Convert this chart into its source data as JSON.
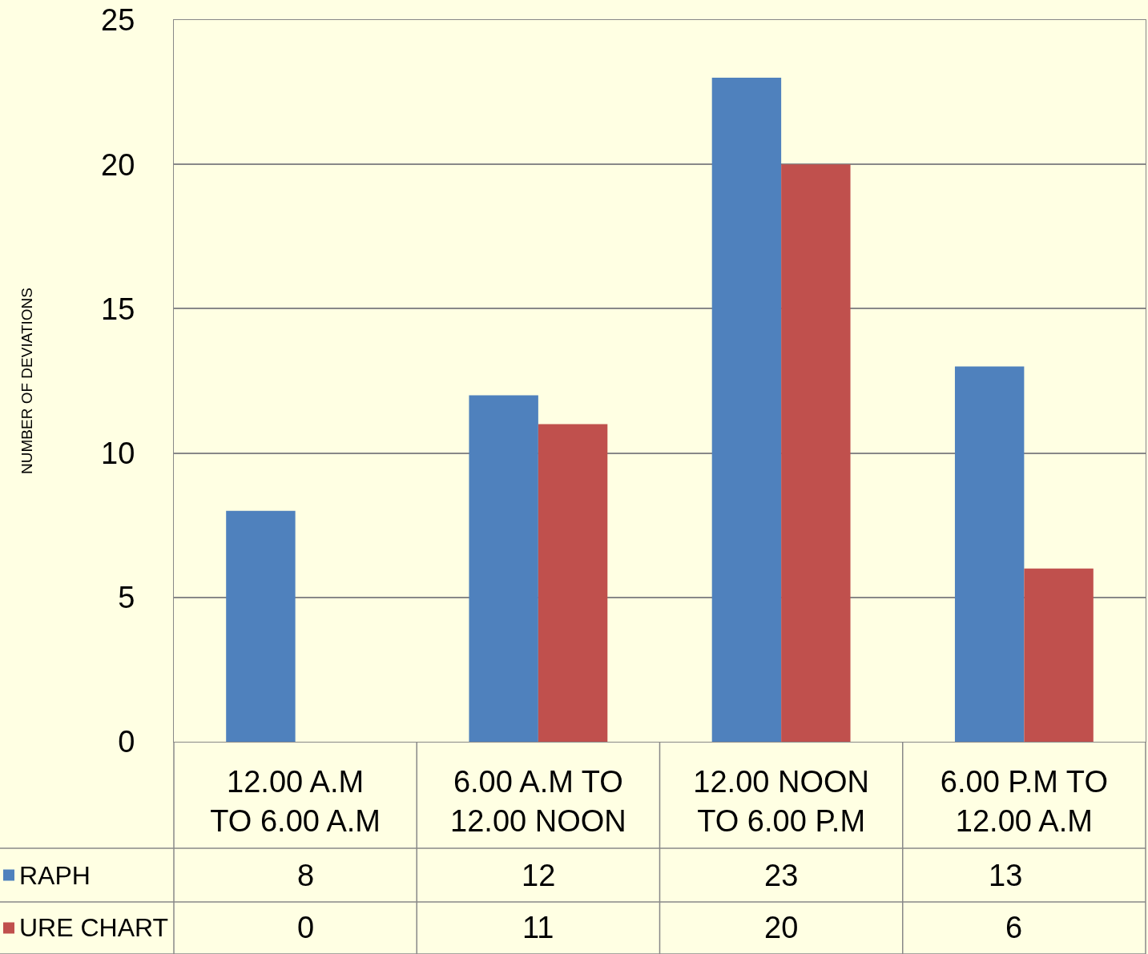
{
  "chart_data": {
    "type": "bar",
    "ylabel": "NUMBER OF DEVIATIONS",
    "categories": [
      "12.00 A.M TO 6.00 A.M",
      "6.00 A.M TO 12.00 NOON",
      "12.00 NOON TO 6.00 P.M",
      "6.00 P.M TO 12.00 A.M"
    ],
    "series": [
      {
        "name": "RAPH",
        "color": "#4f81bd",
        "values": [
          8,
          12,
          23,
          13
        ]
      },
      {
        "name": "URE CHART",
        "color": "#c0504d",
        "values": [
          0,
          11,
          20,
          6
        ]
      }
    ],
    "ylim": [
      0,
      25
    ],
    "yticks": [
      0,
      5,
      10,
      15,
      20,
      25
    ],
    "grid": "y",
    "data_labels": true,
    "legend": "bottom"
  }
}
